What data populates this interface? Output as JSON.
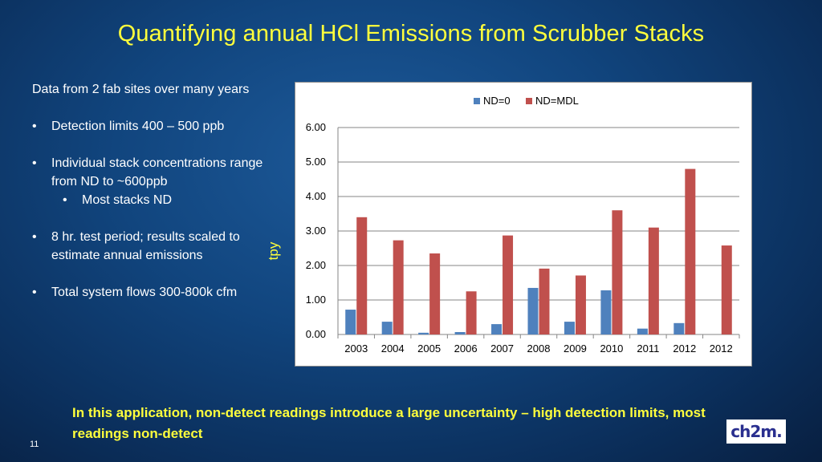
{
  "slide": {
    "title": "Quantifying annual HCl Emissions from Scrubber Stacks",
    "intro": "Data from 2 fab sites over many years",
    "bullets": [
      "Detection limits 400 – 500 ppb",
      "Individual stack concentrations range from ND to ~600ppb",
      "8 hr. test period; results scaled to estimate annual emissions",
      "Total system flows 300-800k cfm"
    ],
    "sub_bullet": "Most stacks ND",
    "footer_note": "In this application, non-detect readings introduce a large uncertainty – high detection limits, most readings non-detect",
    "page_number": "11",
    "logo_text": "ch2m."
  },
  "chart_data": {
    "type": "bar",
    "title": "",
    "xlabel": "",
    "ylabel": "tpy",
    "categories": [
      "2003",
      "2004",
      "2005",
      "2006",
      "2007",
      "2008",
      "2009",
      "2010",
      "2011",
      "2012",
      "2012"
    ],
    "series": [
      {
        "name": "ND=0",
        "color": "#4f81bd",
        "values": [
          0.72,
          0.37,
          0.05,
          0.07,
          0.3,
          1.35,
          0.37,
          1.28,
          0.17,
          0.33,
          0.0
        ]
      },
      {
        "name": "ND=MDL",
        "color": "#c0504d",
        "values": [
          3.4,
          2.73,
          2.35,
          1.25,
          2.87,
          1.91,
          1.71,
          3.6,
          3.1,
          4.8,
          2.58
        ]
      }
    ],
    "ylim": [
      0,
      6
    ],
    "yticks": [
      "0.00",
      "1.00",
      "2.00",
      "3.00",
      "4.00",
      "5.00",
      "6.00"
    ],
    "grid": true,
    "legend_position": "top"
  }
}
